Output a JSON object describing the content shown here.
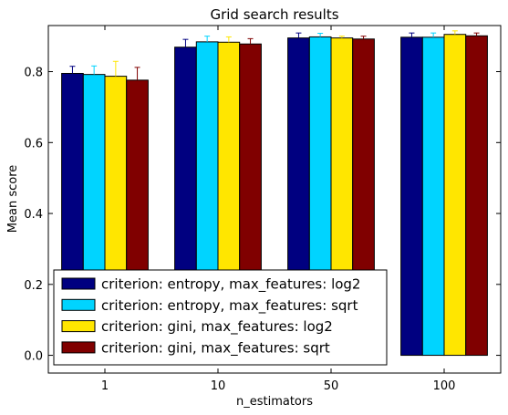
{
  "chart_data": {
    "type": "bar",
    "title": "Grid search results",
    "xlabel": "n_estimators",
    "ylabel": "Mean score",
    "categories": [
      "1",
      "10",
      "50",
      "100"
    ],
    "ylim": [
      -0.05,
      0.93
    ],
    "yticks": [
      "0.0",
      "0.2",
      "0.4",
      "0.6",
      "0.8"
    ],
    "grid": false,
    "legend_position": "lower-left",
    "series": [
      {
        "name": "criterion: entropy, max_features: log2",
        "color": "#000080",
        "values": [
          0.795,
          0.869,
          0.895,
          0.897
        ],
        "errors": [
          0.02,
          0.022,
          0.014,
          0.012
        ]
      },
      {
        "name": "criterion: entropy, max_features: sqrt",
        "color": "#00d4ff",
        "values": [
          0.792,
          0.884,
          0.898,
          0.897
        ],
        "errors": [
          0.024,
          0.016,
          0.01,
          0.012
        ]
      },
      {
        "name": "criterion: gini, max_features: log2",
        "color": "#ffe600",
        "values": [
          0.787,
          0.883,
          0.895,
          0.905
        ],
        "errors": [
          0.042,
          0.015,
          0.005,
          0.01
        ]
      },
      {
        "name": "criterion: gini, max_features: sqrt",
        "color": "#800000",
        "values": [
          0.776,
          0.878,
          0.892,
          0.901
        ],
        "errors": [
          0.036,
          0.015,
          0.008,
          0.008
        ]
      }
    ]
  }
}
